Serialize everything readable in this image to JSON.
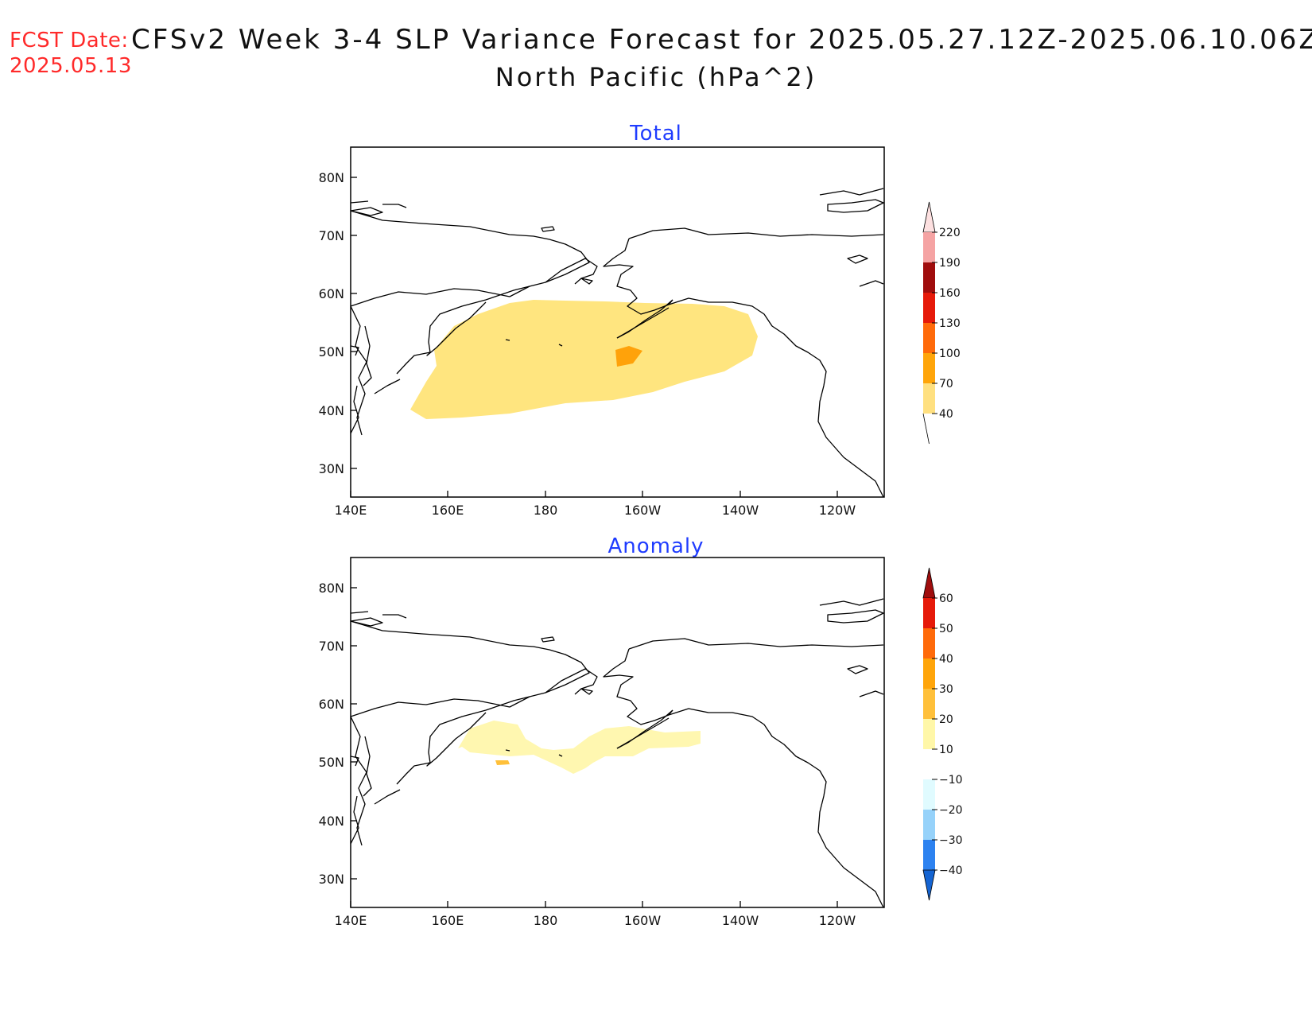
{
  "header": {
    "fcst_label": "FCST Date:",
    "fcst_date": "2025.05.13",
    "title_line1": "CFSv2 Week 3-4 SLP Variance Forecast for 2025.05.27.12Z-2025.06.10.06Z",
    "title_line2": "North Pacific (hPa^2)"
  },
  "axes": {
    "lat_ticks": [
      "80N",
      "70N",
      "60N",
      "50N",
      "40N",
      "30N"
    ],
    "lon_ticks": [
      "140E",
      "160E",
      "180",
      "160W",
      "140W",
      "120W"
    ]
  },
  "panels": [
    {
      "title": "Total",
      "colorbar_labels": [
        "220",
        "190",
        "160",
        "130",
        "100",
        "70",
        "40"
      ],
      "colorbar_colors": [
        "#f5a3a3",
        "#a00d0d",
        "#e61a0a",
        "#ff6a0a",
        "#ffa50a",
        "#ffe080",
        "#ffffff"
      ],
      "fill_main": "#ffe57f",
      "fill_high": "#ffa20a"
    },
    {
      "title": "Anomaly",
      "colorbar_labels": [
        "60",
        "50",
        "40",
        "30",
        "20",
        "10",
        "−10",
        "−20",
        "−30",
        "−40"
      ],
      "colorbar_colors": [
        "#a00d0d",
        "#e61a0a",
        "#ff6a0a",
        "#ffa50a",
        "#ffc03a",
        "#fff7a8",
        "#ffffff",
        "#e0fbff",
        "#96d2fa",
        "#2d82f0",
        "#1464d2"
      ],
      "fill_main": "#fff7b0",
      "fill_high": "#ffc03a"
    }
  ]
}
